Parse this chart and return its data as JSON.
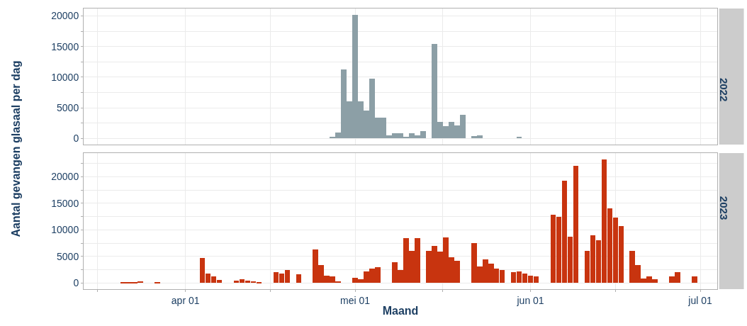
{
  "chart_data": [
    {
      "type": "bar",
      "title": "2022",
      "ylabel": "Aantal gevangen glasaal per dag",
      "color": "#8c9fa6",
      "x": [
        "--04-27",
        "--04-28",
        "--04-29",
        "--04-30",
        "--05-01",
        "--05-02",
        "--05-03",
        "--05-04",
        "--05-05",
        "--05-06",
        "--05-07",
        "--05-08",
        "--05-09",
        "--05-10",
        "--05-11",
        "--05-12",
        "--05-13",
        "--05-15",
        "--05-16",
        "--05-17",
        "--05-18",
        "--05-19",
        "--05-20",
        "--05-22",
        "--05-23",
        "--05-30"
      ],
      "values": [
        300,
        1000,
        11300,
        6100,
        20200,
        6100,
        4500,
        9800,
        3400,
        3400,
        500,
        900,
        800,
        300,
        800,
        500,
        1200,
        15400,
        2700,
        2000,
        2700,
        2100,
        3900,
        400,
        500,
        300
      ],
      "xlim": [
        "--03-14",
        "--07-04"
      ],
      "xticks": [
        {
          "value": "--03-16T12:00",
          "label": null
        },
        {
          "value": "--04-01",
          "label": "apr 01"
        },
        {
          "value": "--04-16",
          "label": null
        },
        {
          "value": "--05-01",
          "label": "mei 01"
        },
        {
          "value": "--05-16T12:00",
          "label": null
        },
        {
          "value": "--06-01",
          "label": "jun 01"
        },
        {
          "value": "--06-16",
          "label": null
        },
        {
          "value": "--07-01",
          "label": "jul 01"
        }
      ],
      "ylim": [
        -1010,
        21210
      ],
      "yticks": [
        0,
        {
          "value": 2500,
          "label": null
        },
        5000,
        {
          "value": 7500,
          "label": null
        },
        10000,
        {
          "value": 12500,
          "label": null
        },
        15000,
        {
          "value": 17500,
          "label": null
        },
        20000
      ],
      "tick_labels": "y",
      "grid": true
    },
    {
      "type": "bar",
      "title": "2023",
      "xlabel": "Maand",
      "color": "#c8340f",
      "x": [
        "--03-21",
        "--03-22",
        "--03-23",
        "--03-24",
        "--03-27",
        "--04-04",
        "--04-05",
        "--04-06",
        "--04-07",
        "--04-10",
        "--04-11",
        "--04-12",
        "--04-13",
        "--04-14",
        "--04-17",
        "--04-18",
        "--04-19",
        "--04-21",
        "--04-24",
        "--04-25",
        "--04-26",
        "--04-27",
        "--04-28",
        "--05-01",
        "--05-02",
        "--05-03",
        "--05-04",
        "--05-05",
        "--05-08",
        "--05-09",
        "--05-10",
        "--05-11",
        "--05-12",
        "--05-14",
        "--05-15",
        "--05-16",
        "--05-17",
        "--05-18",
        "--05-19",
        "--05-22",
        "--05-23",
        "--05-24",
        "--05-25",
        "--05-26",
        "--05-27",
        "--05-29",
        "--05-30",
        "--05-31",
        "--06-01",
        "--06-02",
        "--06-05",
        "--06-06",
        "--06-07",
        "--06-08",
        "--06-09",
        "--06-11",
        "--06-12",
        "--06-13",
        "--06-14",
        "--06-15",
        "--06-16",
        "--06-17",
        "--06-19",
        "--06-20",
        "--06-21",
        "--06-22",
        "--06-23",
        "--06-26",
        "--06-27",
        "--06-30"
      ],
      "values": [
        200,
        200,
        200,
        300,
        200,
        4700,
        1800,
        1200,
        600,
        400,
        700,
        400,
        300,
        200,
        2100,
        1800,
        2400,
        1700,
        6300,
        3400,
        1400,
        1200,
        300,
        1000,
        700,
        2200,
        2700,
        3000,
        3900,
        2400,
        8400,
        6100,
        8400,
        6100,
        7000,
        5900,
        8600,
        4900,
        4200,
        7500,
        3100,
        4500,
        3600,
        2700,
        2500,
        2100,
        2200,
        1800,
        1400,
        1200,
        12800,
        12500,
        19300,
        8700,
        22100,
        6000,
        9000,
        8100,
        23300,
        14000,
        12300,
        10700,
        6000,
        3400,
        800,
        1300,
        700,
        1300,
        2000,
        1300
      ],
      "xlim": [
        "--03-14",
        "--07-04"
      ],
      "xticks": [
        {
          "value": "--03-16T12:00",
          "label": null
        },
        {
          "value": "--04-01",
          "label": "apr 01"
        },
        {
          "value": "--04-16",
          "label": null
        },
        {
          "value": "--05-01",
          "label": "mei 01"
        },
        {
          "value": "--05-16T12:00",
          "label": null
        },
        {
          "value": "--06-01",
          "label": "jun 01"
        },
        {
          "value": "--06-16",
          "label": null
        },
        {
          "value": "--07-01",
          "label": "jul 01"
        }
      ],
      "ylim": [
        -1165,
        24465
      ],
      "yticks": [
        0,
        {
          "value": 2500,
          "label": null
        },
        5000,
        {
          "value": 7500,
          "label": null
        },
        10000,
        {
          "value": 12500,
          "label": null
        },
        15000,
        {
          "value": 17500,
          "label": null
        },
        20000,
        {
          "value": 22500,
          "label": null
        }
      ],
      "grid": true
    }
  ]
}
